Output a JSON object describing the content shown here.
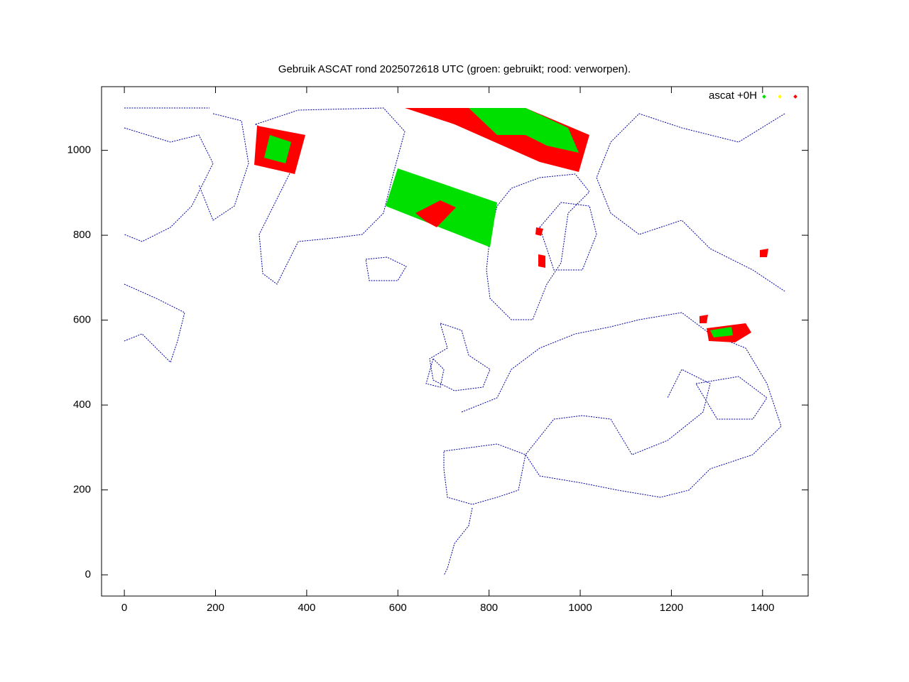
{
  "chart_data": {
    "type": "scatter",
    "title": "Gebruik ASCAT rond 2025072618 UTC (groen: gebruikt; rood: verworpen).",
    "xlim": [
      -50,
      1500
    ],
    "ylim": [
      -50,
      1150
    ],
    "xticks": [
      0,
      200,
      400,
      600,
      800,
      1000,
      1200,
      1400
    ],
    "yticks": [
      0,
      200,
      400,
      600,
      800,
      1000
    ],
    "legend": {
      "label": "ascat +0H",
      "colors": [
        "#00e000",
        "#ffff00",
        "#ff0000"
      ],
      "position": "upper right"
    },
    "map_color": "#0000a0"
  }
}
